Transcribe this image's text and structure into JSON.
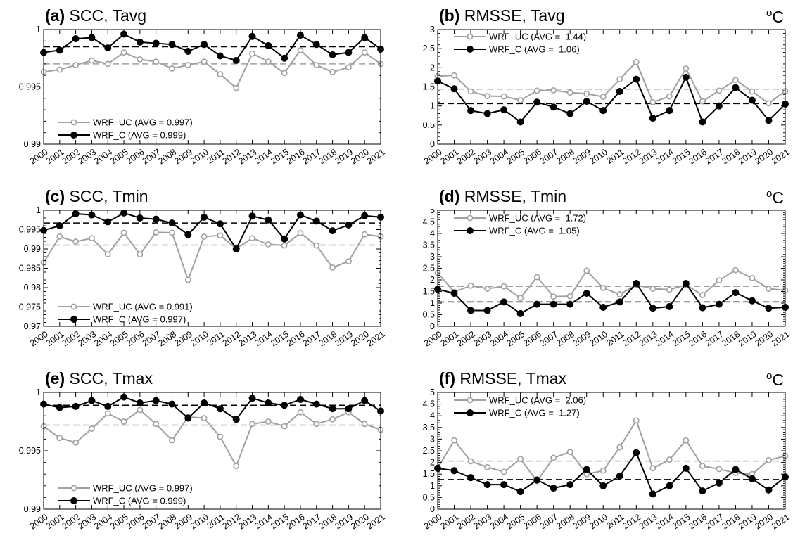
{
  "chart_data": [
    {
      "type": "line",
      "panel_letter": "(a)",
      "title": "SCC, Tavg",
      "unit": "",
      "categories": [
        "2000",
        "2001",
        "2002",
        "2003",
        "2004",
        "2005",
        "2006",
        "2007",
        "2008",
        "2009",
        "2010",
        "2011",
        "2012",
        "2013",
        "2014",
        "2015",
        "2016",
        "2017",
        "2018",
        "2019",
        "2020",
        "2021"
      ],
      "ylim": [
        0.99,
        1.0
      ],
      "yticks": [
        0.99,
        0.995,
        1.0
      ],
      "ytick_labels": [
        "0.99",
        "0.995",
        "1"
      ],
      "legend_position": "bottom-left",
      "series": [
        {
          "name": "WRF_UC (AVG = 0.997)",
          "color": "#a0a0a0",
          "marker": "open-circle",
          "avg": 0.997,
          "values": [
            0.9963,
            0.9965,
            0.9969,
            0.9973,
            0.997,
            0.998,
            0.9974,
            0.9972,
            0.9966,
            0.9969,
            0.9972,
            0.9961,
            0.9949,
            0.9979,
            0.9972,
            0.9962,
            0.9982,
            0.9969,
            0.9963,
            0.9967,
            0.998,
            0.997
          ]
        },
        {
          "name": "WRF_C (AVG = 0.999)",
          "color": "#000000",
          "marker": "filled-circle",
          "avg": 0.9985,
          "values": [
            0.998,
            0.9982,
            0.9992,
            0.9993,
            0.9984,
            0.9996,
            0.9989,
            0.9988,
            0.9987,
            0.9981,
            0.9987,
            0.9977,
            0.9973,
            0.9994,
            0.9986,
            0.9975,
            0.9995,
            0.9987,
            0.9978,
            0.998,
            0.9993,
            0.9983
          ]
        }
      ]
    },
    {
      "type": "line",
      "panel_letter": "(b)",
      "title": "RMSSE, Tavg",
      "unit": "oC",
      "categories": [
        "2000",
        "2001",
        "2002",
        "2003",
        "2004",
        "2005",
        "2006",
        "2007",
        "2008",
        "2009",
        "2010",
        "2011",
        "2012",
        "2013",
        "2014",
        "2015",
        "2016",
        "2017",
        "2018",
        "2019",
        "2020",
        "2021"
      ],
      "ylim": [
        0,
        3
      ],
      "yticks": [
        0,
        0.5,
        1,
        1.5,
        2,
        2.5,
        3
      ],
      "ytick_labels": [
        "0",
        "0.5",
        "1",
        "1.5",
        "2",
        "2.5",
        "3"
      ],
      "legend_position": "top-left",
      "series": [
        {
          "name": "WRF_UC (AVG =  1.44)",
          "color": "#a0a0a0",
          "marker": "open-circle",
          "avg": 1.44,
          "values": [
            1.78,
            1.8,
            1.38,
            1.26,
            1.25,
            1.15,
            1.4,
            1.41,
            1.35,
            1.32,
            1.24,
            1.7,
            2.15,
            1.1,
            1.25,
            1.98,
            1.12,
            1.4,
            1.68,
            1.38,
            1.07,
            1.39
          ]
        },
        {
          "name": "WRF_C (AVG =  1.06)",
          "color": "#000000",
          "marker": "filled-circle",
          "avg": 1.06,
          "values": [
            1.65,
            1.45,
            0.88,
            0.8,
            0.9,
            0.58,
            1.1,
            0.97,
            0.8,
            1.12,
            0.88,
            1.38,
            1.7,
            0.68,
            0.88,
            1.75,
            0.58,
            1.0,
            1.48,
            1.15,
            0.62,
            1.05
          ]
        }
      ]
    },
    {
      "type": "line",
      "panel_letter": "(c)",
      "title": "SCC, Tmin",
      "unit": "",
      "categories": [
        "2000",
        "2001",
        "2002",
        "2003",
        "2004",
        "2005",
        "2006",
        "2007",
        "2008",
        "2009",
        "2010",
        "2011",
        "2012",
        "2013",
        "2014",
        "2015",
        "2016",
        "2017",
        "2018",
        "2019",
        "2020",
        "2021"
      ],
      "ylim": [
        0.97,
        1.0
      ],
      "yticks": [
        0.97,
        0.975,
        0.98,
        0.985,
        0.99,
        0.995,
        1.0
      ],
      "ytick_labels": [
        "0.97",
        "0.975",
        "0.98",
        "0.985",
        "0.99",
        "0.995",
        "1"
      ],
      "legend_position": "bottom-left",
      "series": [
        {
          "name": "WRF_UC (AVG = 0.991)",
          "color": "#a0a0a0",
          "marker": "open-circle",
          "avg": 0.991,
          "values": [
            0.9865,
            0.9932,
            0.9919,
            0.9928,
            0.9886,
            0.9942,
            0.9886,
            0.9943,
            0.9942,
            0.982,
            0.9932,
            0.9935,
            0.9901,
            0.9928,
            0.9912,
            0.9909,
            0.9941,
            0.9909,
            0.9852,
            0.9868,
            0.9938,
            0.9932
          ]
        },
        {
          "name": "WRF_C (AVG = 0.997)",
          "color": "#000000",
          "marker": "filled-circle",
          "avg": 0.9967,
          "values": [
            0.9948,
            0.996,
            0.9991,
            0.9988,
            0.997,
            0.9993,
            0.998,
            0.9977,
            0.9967,
            0.9937,
            0.9982,
            0.9965,
            0.99,
            0.9985,
            0.9975,
            0.9926,
            0.9988,
            0.9972,
            0.9947,
            0.9962,
            0.9986,
            0.9982
          ]
        }
      ]
    },
    {
      "type": "line",
      "panel_letter": "(d)",
      "title": "RMSSE, Tmin",
      "unit": "oC",
      "categories": [
        "2000",
        "2001",
        "2002",
        "2003",
        "2004",
        "2005",
        "2006",
        "2007",
        "2008",
        "2009",
        "2010",
        "2011",
        "2012",
        "2013",
        "2014",
        "2015",
        "2016",
        "2017",
        "2018",
        "2019",
        "2020",
        "2021"
      ],
      "ylim": [
        0,
        5
      ],
      "yticks": [
        0,
        0.5,
        1,
        1.5,
        2,
        2.5,
        3,
        3.5,
        4,
        4.5,
        5
      ],
      "ytick_labels": [
        "0",
        "0.5",
        "1",
        "1.5",
        "2",
        "2.5",
        "3",
        "3.5",
        "4",
        "4.5",
        "5"
      ],
      "legend_position": "top-left",
      "series": [
        {
          "name": "WRF_UC (AVG =  1.72)",
          "color": "#a0a0a0",
          "marker": "open-circle",
          "avg": 1.72,
          "values": [
            2.3,
            1.48,
            1.75,
            1.62,
            1.72,
            1.22,
            2.12,
            1.28,
            1.3,
            2.4,
            1.65,
            1.38,
            1.78,
            1.62,
            1.58,
            1.78,
            1.35,
            1.98,
            2.42,
            2.08,
            1.62,
            1.55
          ]
        },
        {
          "name": "WRF_C (AVG =  1.05)",
          "color": "#000000",
          "marker": "filled-circle",
          "avg": 1.05,
          "values": [
            1.6,
            1.42,
            0.68,
            0.68,
            1.05,
            0.55,
            0.95,
            0.95,
            0.95,
            1.42,
            0.82,
            1.05,
            1.85,
            0.78,
            0.85,
            1.85,
            0.8,
            0.95,
            1.45,
            1.1,
            0.78,
            0.82
          ]
        }
      ]
    },
    {
      "type": "line",
      "panel_letter": "(e)",
      "title": "SCC, Tmax",
      "unit": "",
      "categories": [
        "2000",
        "2001",
        "2002",
        "2003",
        "2004",
        "2005",
        "2006",
        "2007",
        "2008",
        "2009",
        "2010",
        "2011",
        "2012",
        "2013",
        "2014",
        "2015",
        "2016",
        "2017",
        "2018",
        "2019",
        "2020",
        "2021"
      ],
      "ylim": [
        0.99,
        1.0
      ],
      "yticks": [
        0.99,
        0.995,
        1.0
      ],
      "ytick_labels": [
        "0.99",
        "0.995",
        "1"
      ],
      "legend_position": "bottom-left",
      "series": [
        {
          "name": "WRF_UC (AVG = 0.997)",
          "color": "#a0a0a0",
          "marker": "open-circle",
          "avg": 0.9972,
          "values": [
            0.9971,
            0.9961,
            0.9957,
            0.9969,
            0.9982,
            0.9975,
            0.9985,
            0.9973,
            0.9959,
            0.9979,
            0.9978,
            0.9962,
            0.9937,
            0.9973,
            0.9975,
            0.9971,
            0.9983,
            0.9973,
            0.9977,
            0.9983,
            0.9973,
            0.9968
          ]
        },
        {
          "name": "WRF_C (AVG = 0.999)",
          "color": "#000000",
          "marker": "filled-circle",
          "avg": 0.9989,
          "values": [
            0.999,
            0.9987,
            0.9988,
            0.9993,
            0.9988,
            0.9996,
            0.9991,
            0.9993,
            0.999,
            0.9978,
            0.9991,
            0.9986,
            0.9977,
            0.9995,
            0.9991,
            0.9989,
            0.9994,
            0.999,
            0.9986,
            0.9986,
            0.9993,
            0.9984
          ]
        }
      ]
    },
    {
      "type": "line",
      "panel_letter": "(f)",
      "title": "RMSSE, Tmax",
      "unit": "oC",
      "categories": [
        "2000",
        "2001",
        "2002",
        "2003",
        "2004",
        "2005",
        "2006",
        "2007",
        "2008",
        "2009",
        "2010",
        "2011",
        "2012",
        "2013",
        "2014",
        "2015",
        "2016",
        "2017",
        "2018",
        "2019",
        "2020",
        "2021"
      ],
      "ylim": [
        0,
        5
      ],
      "yticks": [
        0,
        0.5,
        1,
        1.5,
        2,
        2.5,
        3,
        3.5,
        4,
        4.5,
        5
      ],
      "ytick_labels": [
        "0",
        "0.5",
        "1",
        "1.5",
        "2",
        "2.5",
        "3",
        "3.5",
        "4",
        "4.5",
        "5"
      ],
      "legend_position": "top-left",
      "series": [
        {
          "name": "WRF_UC (AVG =  2.06)",
          "color": "#a0a0a0",
          "marker": "open-circle",
          "avg": 2.06,
          "values": [
            1.75,
            2.95,
            2.05,
            1.8,
            1.6,
            2.15,
            1.2,
            2.2,
            2.45,
            1.5,
            1.65,
            2.65,
            3.8,
            1.75,
            2.12,
            2.95,
            1.85,
            1.72,
            1.55,
            1.5,
            2.1,
            2.28
          ]
        },
        {
          "name": "WRF_C (AVG =  1.27)",
          "color": "#000000",
          "marker": "filled-circle",
          "avg": 1.27,
          "values": [
            1.75,
            1.65,
            1.35,
            1.05,
            1.05,
            0.75,
            1.25,
            0.9,
            1.05,
            1.7,
            1.0,
            1.42,
            2.42,
            0.65,
            1.0,
            1.75,
            0.78,
            1.12,
            1.7,
            1.3,
            0.82,
            1.38
          ]
        }
      ]
    }
  ]
}
